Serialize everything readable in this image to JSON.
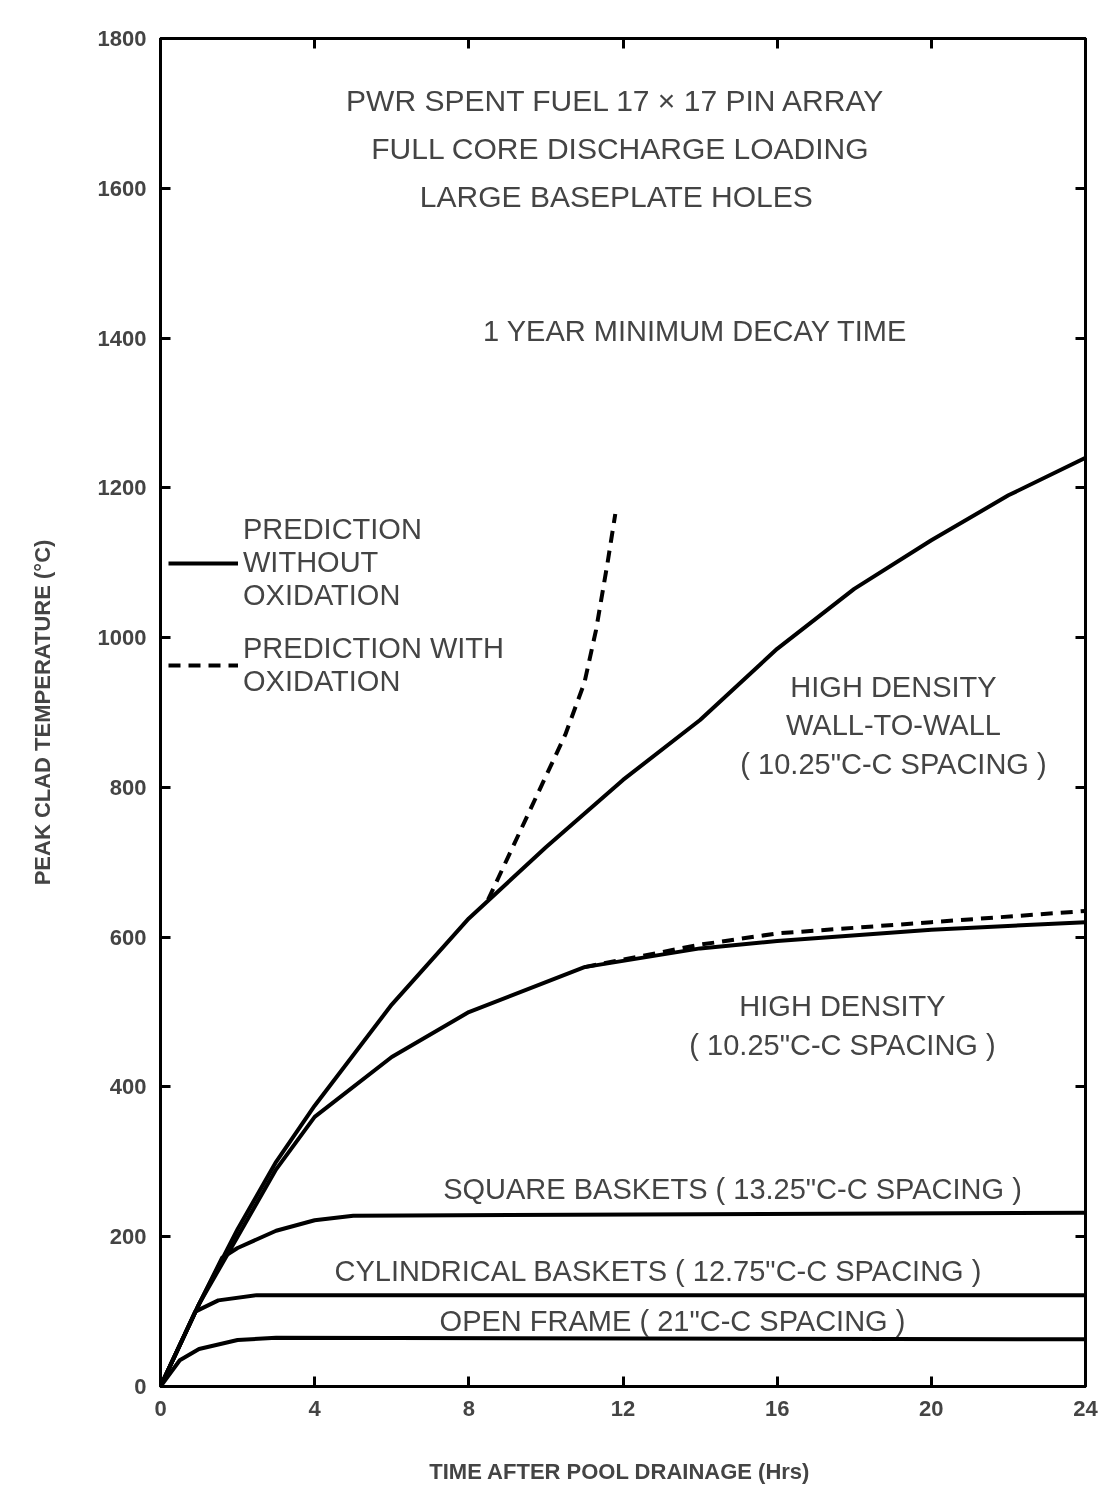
{
  "chart_data": {
    "type": "line",
    "title": "PWR SPENT FUEL  17 × 17 PIN ARRAY",
    "subtitle": "FULL CORE DISCHARGE LOADING\nLARGE  BASEPLATE HOLES",
    "xlabel": "TIME AFTER POOL DRAINAGE  (Hrs)",
    "ylabel": "PEAK CLAD TEMPERATURE (°C)",
    "xlim": [
      0,
      24
    ],
    "ylim": [
      0,
      1800
    ],
    "xticks": [
      0,
      4,
      8,
      12,
      16,
      20,
      24
    ],
    "yticks": [
      0,
      200,
      400,
      600,
      800,
      1000,
      1200,
      1400,
      1600,
      1800
    ],
    "grid": false,
    "legend": "top left",
    "series": [
      {
        "name": "PREDICTION\nWITHOUT\nOXIDATION",
        "color": "#000000",
        "line_style": "solid",
        "x": [
          0,
          1,
          2,
          3,
          4,
          6,
          8,
          10,
          12,
          14,
          16,
          18,
          20,
          22,
          24
        ],
        "values": [
          0,
          110,
          210,
          300,
          375,
          510,
          625,
          720,
          810,
          890,
          985,
          1065,
          1130,
          1190,
          1240
        ]
      },
      {
        "name": "PREDICTION WITH\nOXIDATION",
        "color": "#000000",
        "line_style": "dashed",
        "x": [
          8.5,
          9.5,
          10.5,
          11,
          11.3,
          11.6,
          11.8
        ],
        "values": [
          650,
          760,
          870,
          940,
          1010,
          1100,
          1165
        ]
      },
      {
        "color": "#000000",
        "line_style": "solid",
        "x": [
          0,
          1,
          2,
          3,
          4,
          6,
          8,
          10,
          11,
          14,
          16,
          20,
          24
        ],
        "values": [
          0,
          110,
          200,
          290,
          360,
          440,
          500,
          540,
          560,
          585,
          595,
          610,
          620
        ]
      },
      {
        "color": "#000000",
        "line_style": "dashed",
        "x": [
          11,
          14,
          16,
          20,
          24
        ],
        "values": [
          560,
          590,
          605,
          620,
          635
        ]
      },
      {
        "color": "#000000",
        "line_style": "solid",
        "x": [
          0,
          1,
          1.6,
          2,
          3,
          4,
          5,
          24
        ],
        "values": [
          0,
          110,
          172,
          185,
          208,
          222,
          228,
          232
        ]
      },
      {
        "color": "#000000",
        "line_style": "solid",
        "x": [
          0,
          0.9,
          1.5,
          2.5,
          24
        ],
        "values": [
          0,
          100,
          115,
          122,
          122
        ]
      },
      {
        "color": "#000000",
        "line_style": "solid",
        "x": [
          0,
          0.5,
          1,
          2,
          3,
          24
        ],
        "values": [
          0,
          35,
          50,
          62,
          65,
          63
        ]
      }
    ],
    "annotations": [
      "1 YEAR MINIMUM DECAY TIME",
      "HIGH DENSITY\nWALL-TO-WALL\n( 10.25\"C-C SPACING )",
      "HIGH DENSITY\n( 10.25\"C-C SPACING )",
      "SQUARE BASKETS ( 13.25\"C-C SPACING )",
      "CYLINDRICAL BASKETS  ( 12.75\"C-C SPACING )",
      "OPEN FRAME ( 21\"C-C SPACING )"
    ]
  }
}
